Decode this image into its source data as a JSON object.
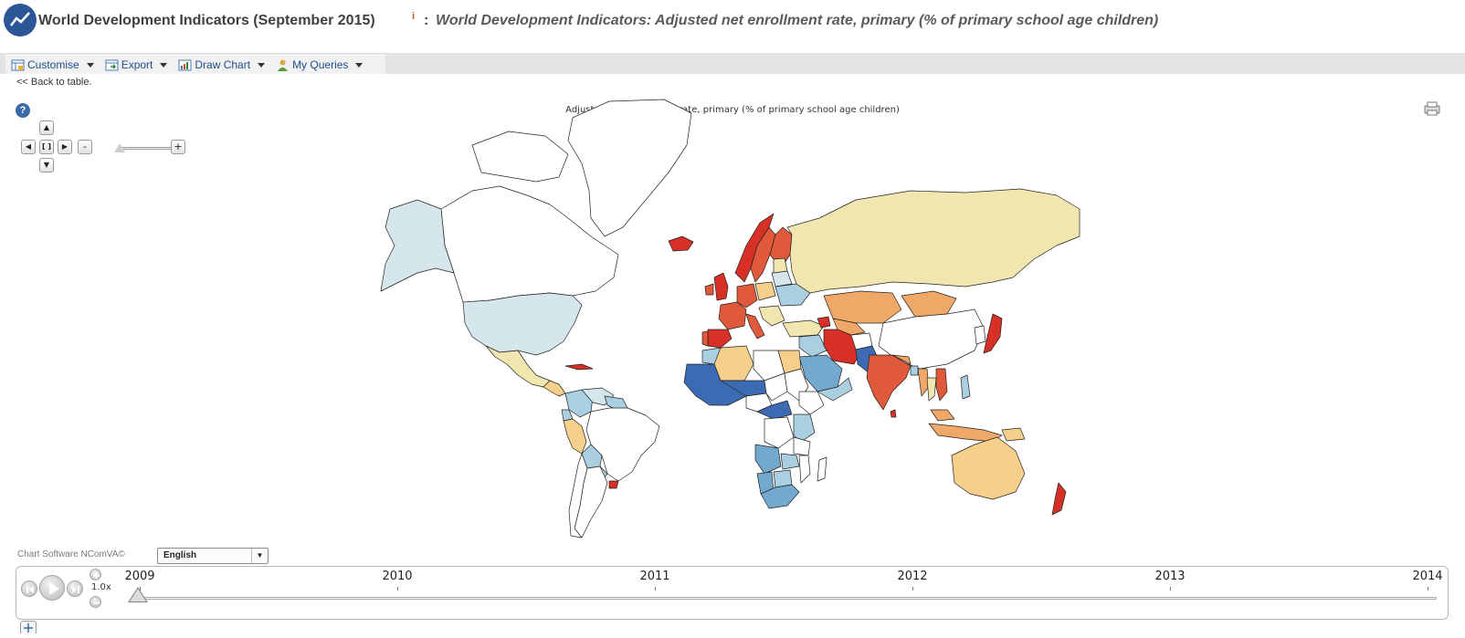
{
  "header": {
    "title": "World Development Indicators (September 2015)",
    "info_mark": "i",
    "separator": ":",
    "subtitle": "World Development Indicators: Adjusted net enrollment rate, primary (% of primary school age children)"
  },
  "toolbar": {
    "items": [
      {
        "label": "Customise",
        "icon": "customise-icon"
      },
      {
        "label": "Export",
        "icon": "export-icon"
      },
      {
        "label": "Draw Chart",
        "icon": "chart-icon"
      },
      {
        "label": "My Queries",
        "icon": "user-icon"
      }
    ],
    "back_link": "<< Back to table."
  },
  "map": {
    "title": "Adjusted net enrollment rate, primary (% of primary school age children)",
    "help_label": "?",
    "nav": {
      "up": "▲",
      "down": "▼",
      "left": "◀",
      "right": "▶",
      "reset": "[ ]",
      "zoom_out": "-",
      "zoom_in": "+"
    },
    "colors": {
      "dark_red": "#d73027",
      "red": "#e0593a",
      "orange": "#f0a868",
      "light_orange": "#f6d08a",
      "pale_yellow": "#f2e6b0",
      "pale_blue": "#d5e6ec",
      "light_blue": "#a9cfe0",
      "mid_blue": "#74a9cf",
      "dark_blue": "#3d6bb3",
      "no_data": "#ffffff"
    }
  },
  "footer": {
    "credit": "Chart Software NComVA©",
    "language": "English",
    "speed": "1.0x",
    "years": [
      "2009",
      "2010",
      "2011",
      "2012",
      "2013",
      "2014"
    ],
    "selected_year": "2009"
  }
}
